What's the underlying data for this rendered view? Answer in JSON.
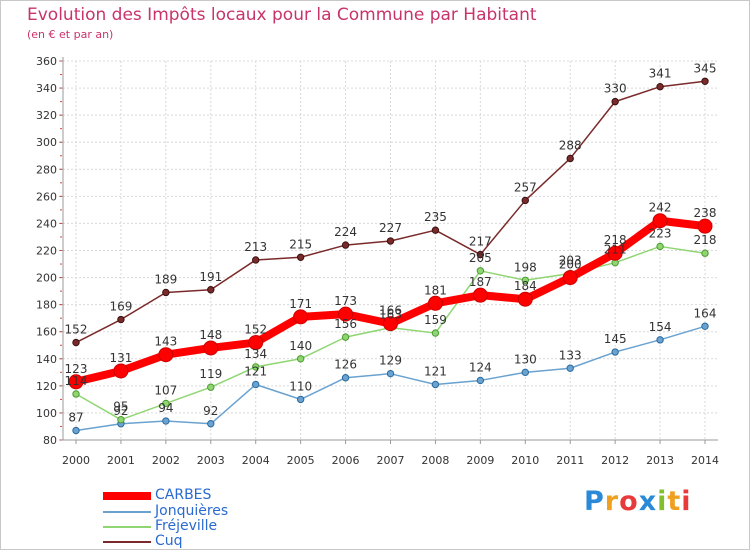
{
  "chart_data": {
    "type": "line",
    "title": "Evolution des Impôts locaux pour la Commune par Habitant",
    "subtitle": "(en € et par an)",
    "xlabel": "",
    "ylabel": "",
    "x": [
      "2000",
      "2001",
      "2002",
      "2003",
      "2004",
      "2005",
      "2006",
      "2007",
      "2008",
      "2009",
      "2010",
      "2011",
      "2012",
      "2013",
      "2014"
    ],
    "ylim": [
      80,
      360
    ],
    "yticks": [
      "80",
      "100",
      "120",
      "140",
      "160",
      "180",
      "200",
      "220",
      "240",
      "260",
      "280",
      "300",
      "320",
      "340",
      "360"
    ],
    "series": [
      {
        "name": "CARBES",
        "color": "#ff0000",
        "values": [
          123,
          131,
          143,
          148,
          152,
          171,
          173,
          166,
          181,
          187,
          184,
          200,
          218,
          242,
          238
        ]
      },
      {
        "name": "Jonquières",
        "color": "#6aa2d0",
        "values": [
          87,
          92,
          94,
          92,
          121,
          110,
          126,
          129,
          121,
          124,
          130,
          133,
          145,
          154,
          164
        ]
      },
      {
        "name": "Fréjeville",
        "color": "#8fd672",
        "values": [
          114,
          95,
          107,
          119,
          134,
          140,
          156,
          163,
          159,
          205,
          198,
          203,
          211,
          223,
          218
        ]
      },
      {
        "name": "Cuq",
        "color": "#7a2a2a",
        "values": [
          152,
          169,
          189,
          191,
          213,
          215,
          224,
          227,
          235,
          217,
          257,
          288,
          330,
          341,
          345
        ]
      }
    ],
    "data_labels": {
      "CARBES": [
        "123",
        "131",
        "143",
        "148",
        "152",
        "171",
        "173",
        "166",
        "181",
        "187",
        "184",
        "200",
        "218",
        "242",
        "238"
      ],
      "Jonquières": [
        "87",
        "92",
        "94",
        "92",
        "121",
        "110",
        "126",
        "129",
        "121",
        "124",
        "130",
        "133",
        "145",
        "154",
        "164"
      ],
      "Fréjeville": [
        "114",
        "95",
        "107",
        "119",
        "134",
        "140",
        "156",
        "163",
        "159",
        "205",
        "198",
        "203",
        "211",
        "223",
        "218"
      ],
      "Cuq": [
        "152",
        "169",
        "189",
        "191",
        "213",
        "215",
        "224",
        "227",
        "235",
        "217",
        "257",
        "288",
        "330",
        "341",
        "345"
      ]
    }
  },
  "brand": {
    "text": "Proxiti",
    "letters": [
      "P",
      "r",
      "o",
      "x",
      "i",
      "t",
      "i"
    ],
    "colors": [
      "#2a8ad8",
      "#f0a020",
      "#e83a3a",
      "#2a8ad8",
      "#80c030",
      "#f0a020",
      "#e83a3a"
    ]
  }
}
